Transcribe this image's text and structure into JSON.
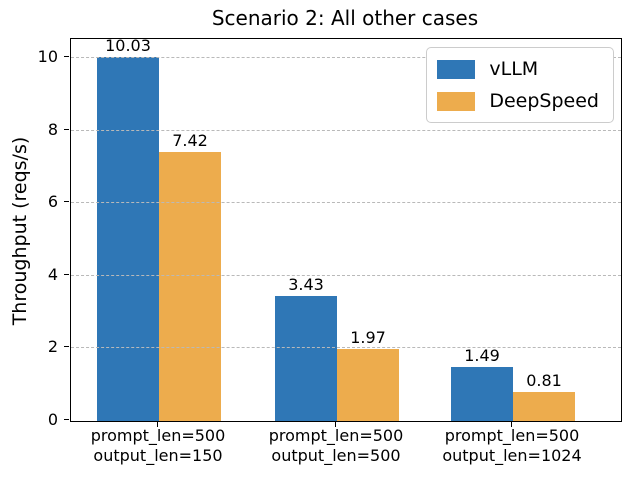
{
  "chart_data": {
    "type": "bar",
    "title": "Scenario 2: All other cases",
    "xlabel": "",
    "ylabel": "Throughput (reqs/s)",
    "categories": [
      "prompt_len=500\noutput_len=150",
      "prompt_len=500\noutput_len=500",
      "prompt_len=500\noutput_len=1024"
    ],
    "series": [
      {
        "name": "vLLM",
        "color": "#2f77b6",
        "values": [
          10.03,
          3.43,
          1.49
        ]
      },
      {
        "name": "DeepSpeed",
        "color": "#edac4d",
        "values": [
          7.42,
          1.97,
          0.81
        ]
      }
    ],
    "value_label_decimals": 2,
    "yticks": [
      0,
      2,
      4,
      6,
      8,
      10
    ],
    "ylim": [
      0,
      10.52
    ],
    "grid": "horizontal-dashed",
    "grid_color": "#b9b9b9",
    "legend_position": "upper right",
    "background_color": "#ffffff",
    "text_color": "#000000"
  }
}
